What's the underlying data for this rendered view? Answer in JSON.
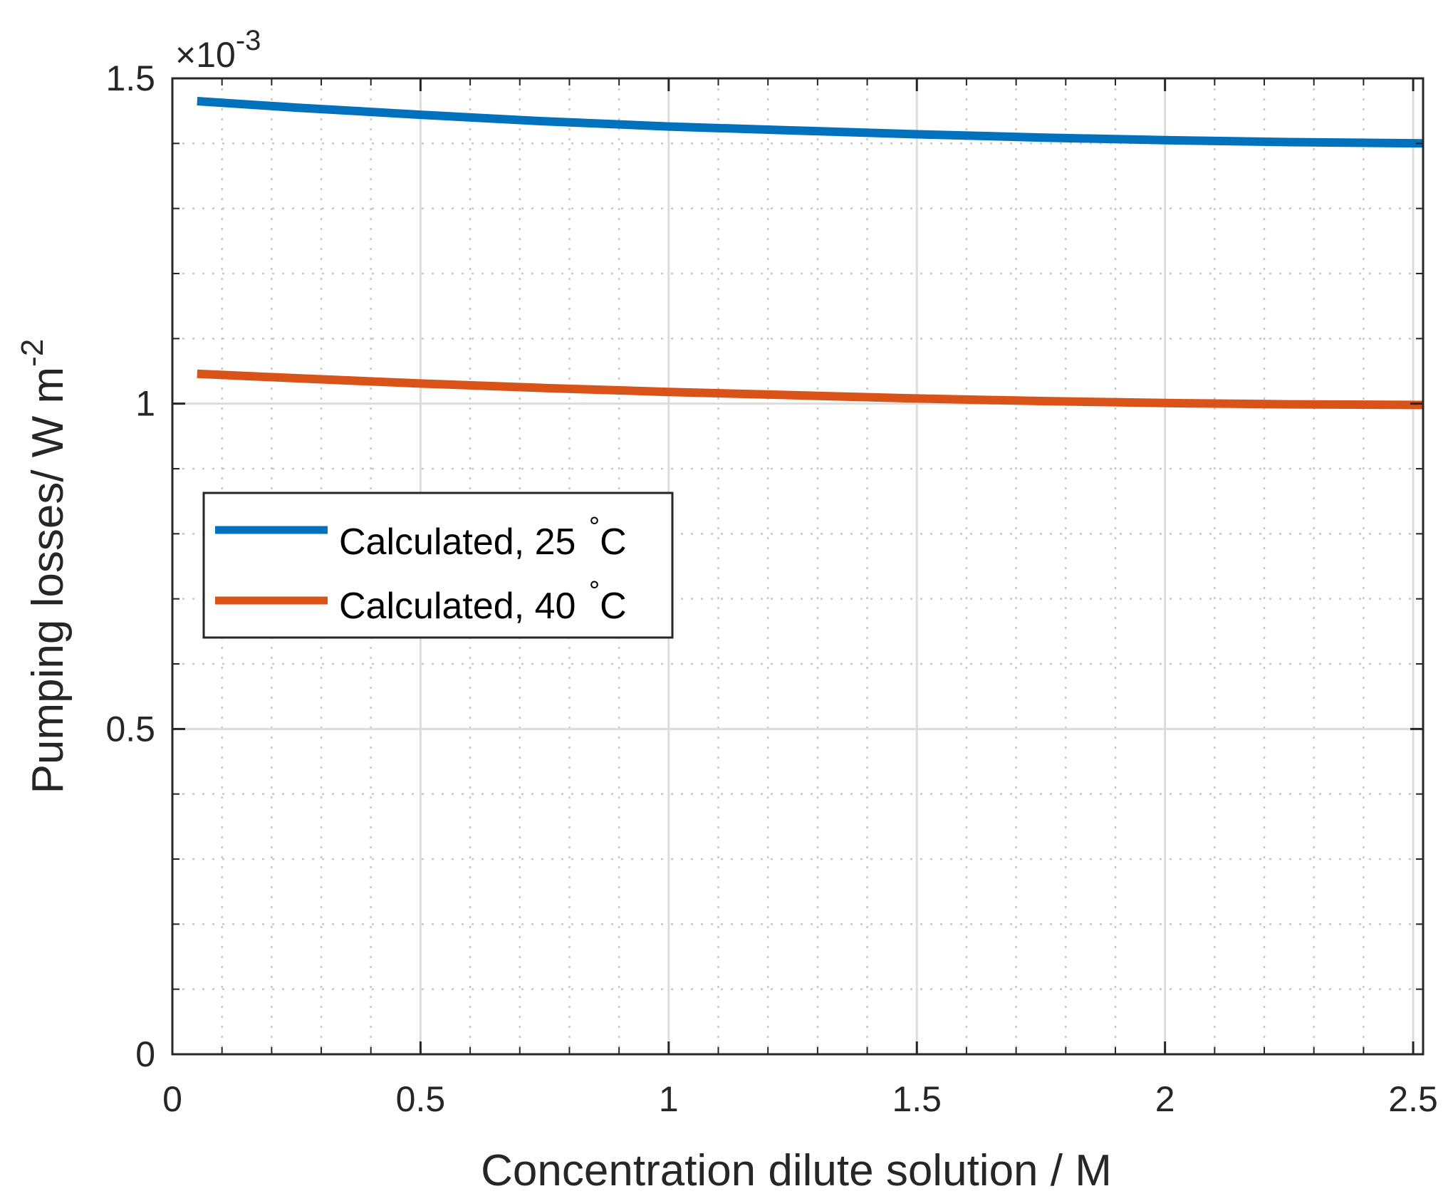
{
  "chart_data": {
    "type": "line",
    "title": "",
    "xlabel": "Concentration dilute solution / M",
    "ylabel": "Pumping losses/ W m",
    "ylabel_superscript": "-2",
    "xlim": [
      0,
      2.52
    ],
    "ylim": [
      0,
      1.5
    ],
    "y_exponent_prefix": "×10",
    "y_exponent_power": "-3",
    "x_ticks": [
      0,
      0.5,
      1,
      1.5,
      2,
      2.5
    ],
    "x_tick_labels": [
      "0",
      "0.5",
      "1",
      "1.5",
      "2",
      "2.5"
    ],
    "y_ticks": [
      0,
      0.5,
      1,
      1.5
    ],
    "y_tick_labels": [
      "0",
      "0.5",
      "1",
      "1.5"
    ],
    "x_minor_step": 0.1,
    "y_minor_step": 0.1,
    "grid": true,
    "legend_position": "middle-left",
    "x": [
      0.05,
      0.25,
      0.5,
      0.75,
      1.0,
      1.25,
      1.5,
      1.75,
      2.0,
      2.25,
      2.52
    ],
    "series": [
      {
        "name": "Calculated, 25",
        "unit": "C",
        "unit_degree": "°",
        "color": "#0072BD",
        "values": [
          1.465,
          1.455,
          1.444,
          1.434,
          1.426,
          1.42,
          1.414,
          1.409,
          1.405,
          1.402,
          1.4
        ]
      },
      {
        "name": "Calculated, 40",
        "unit": "C",
        "unit_degree": "°",
        "color": "#D95319",
        "values": [
          1.046,
          1.039,
          1.031,
          1.024,
          1.018,
          1.013,
          1.008,
          1.004,
          1.001,
          0.999,
          0.998
        ]
      }
    ]
  }
}
